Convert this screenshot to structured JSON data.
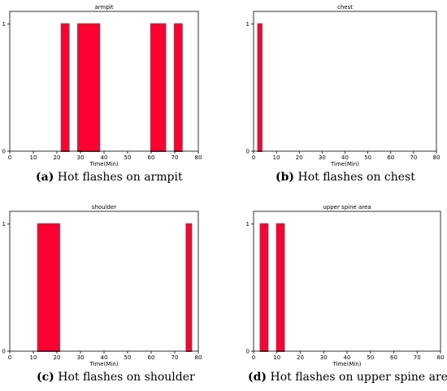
{
  "chart_data": [
    {
      "type": "bar",
      "title": "armpit",
      "xlabel": "Time(Min)",
      "ylabel": "",
      "xlim": [
        0,
        80
      ],
      "ylim": [
        0,
        1.1
      ],
      "xticks": [
        "0",
        "10",
        "20",
        "30",
        "40",
        "50",
        "60",
        "70",
        "80"
      ],
      "yticks": [
        "0",
        "1"
      ],
      "intervals": [
        [
          22,
          25
        ],
        [
          29,
          38
        ],
        [
          60,
          66
        ],
        [
          70,
          73
        ]
      ],
      "caption_letter": "(a)",
      "caption_text": " Hot flashes on armpit"
    },
    {
      "type": "bar",
      "title": "chest",
      "xlabel": "Time(Min)",
      "ylabel": "",
      "xlim": [
        0,
        80
      ],
      "ylim": [
        0,
        1.1
      ],
      "xticks": [
        "0",
        "10",
        "20",
        "30",
        "40",
        "50",
        "60",
        "70",
        "80"
      ],
      "yticks": [
        "0",
        "1"
      ],
      "intervals": [
        [
          2,
          3.5
        ]
      ],
      "caption_letter": "(b)",
      "caption_text": " Hot flashes on chest"
    },
    {
      "type": "bar",
      "title": "shoulder",
      "xlabel": "Time(Min)",
      "ylabel": "",
      "xlim": [
        0,
        80
      ],
      "ylim": [
        0,
        1.1
      ],
      "xticks": [
        "0",
        "10",
        "20",
        "30",
        "40",
        "50",
        "60",
        "70",
        "80"
      ],
      "yticks": [
        "0",
        "1"
      ],
      "intervals": [
        [
          12,
          21
        ],
        [
          75,
          77
        ]
      ],
      "caption_letter": "(c)",
      "caption_text": " Hot flashes on shoulder"
    },
    {
      "type": "bar",
      "title": "upper spine area",
      "xlabel": "Time(Min)",
      "ylabel": "",
      "xlim": [
        0,
        80
      ],
      "ylim": [
        0,
        1.1
      ],
      "xticks": [
        "0",
        "10",
        "20",
        "30",
        "40",
        "50",
        "60",
        "70",
        "80"
      ],
      "yticks": [
        "0",
        "1"
      ],
      "intervals": [
        [
          3,
          6
        ],
        [
          10,
          13
        ]
      ],
      "caption_letter": "(d)",
      "caption_text": " Hot flashes on upper spine area"
    }
  ],
  "colors": {
    "bar_fill": "#ff0033",
    "bar_edge": "#b02a3a",
    "halo": "#f4a6f0"
  }
}
